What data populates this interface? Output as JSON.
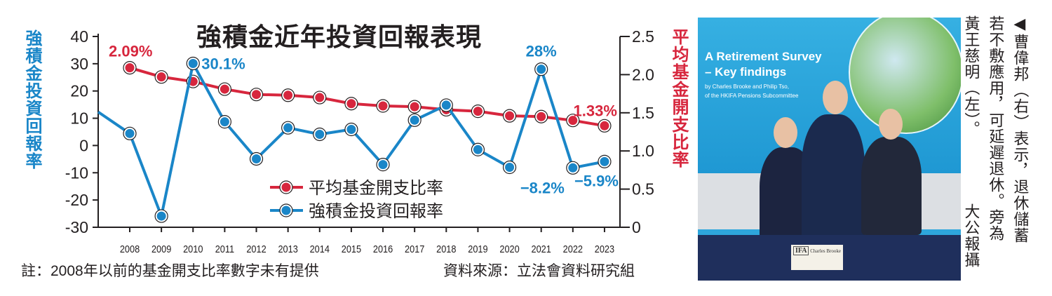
{
  "chart_data": {
    "type": "line",
    "title": "強積金近年投資回報表現",
    "categories": [
      "2008",
      "2009",
      "2010",
      "2011",
      "2012",
      "2013",
      "2014",
      "2015",
      "2016",
      "2017",
      "2018",
      "2019",
      "2020",
      "2021",
      "2022",
      "2023"
    ],
    "series": [
      {
        "name": "平均基金開支比率",
        "axis": "right",
        "color": "#d7263d",
        "values": [
          2.09,
          1.97,
          1.91,
          1.81,
          1.74,
          1.73,
          1.7,
          1.62,
          1.59,
          1.58,
          1.54,
          1.52,
          1.46,
          1.45,
          1.4,
          1.33
        ]
      },
      {
        "name": "強積金投資回報率",
        "axis": "left",
        "color": "#1a86c8",
        "lead_in_value": 12.3,
        "values": [
          4.4,
          -25.9,
          30.1,
          8.7,
          -4.9,
          6.5,
          4.1,
          5.9,
          -7.0,
          9.3,
          14.8,
          -1.5,
          -8.0,
          28.0,
          -8.2,
          -5.9
        ]
      }
    ],
    "left_axis": {
      "label": "強積金投資回報率",
      "ylim": [
        -30,
        40
      ],
      "ticks": [
        "40",
        "30",
        "20",
        "10",
        "0",
        "-10",
        "-20",
        "-30"
      ],
      "tick_values": [
        40,
        30,
        20,
        10,
        0,
        -10,
        -20,
        -30
      ]
    },
    "right_axis": {
      "label": "平均基金開支比率",
      "ylim": [
        0,
        2.5
      ],
      "ticks": [
        "2.5",
        "2.0",
        "1.5",
        "1.0",
        "0.5",
        "0"
      ],
      "tick_values": [
        2.5,
        2.0,
        1.5,
        1.0,
        0.5,
        0
      ]
    },
    "annotations": [
      {
        "text": "2.09%",
        "series": 0,
        "year": "2008"
      },
      {
        "text": "30.1%",
        "series": 1,
        "year": "2010"
      },
      {
        "text": "28%",
        "series": 1,
        "year": "2021"
      },
      {
        "text": "1.33%",
        "series": 0,
        "year": "2023"
      },
      {
        "text": "−8.2%",
        "series": 1,
        "year": "2022"
      },
      {
        "text": "−5.9%",
        "series": 1,
        "year": "2023"
      }
    ],
    "legend_position": "center-bottom",
    "grid": false
  },
  "footnote": "註：2008年以前的基金開支比率數字未有提供",
  "source": "資料來源：立法會資料研究組",
  "photo": {
    "slide_title_1": "A Retirement Survey",
    "slide_title_2": "– Key findings",
    "slide_sub_1": "by Charles Brooke and Philip Tso,",
    "slide_sub_2": "of the HKIFA Pensions Subcommittee",
    "nameplate_logo": "IFA",
    "nameplate_name": "Charles Brooke"
  },
  "caption": {
    "lines": [
      "◀曹偉邦（右）表示，退休儲蓄",
      "若不敷應用，可延遲退休。旁為",
      "黃王慈明（左）。"
    ],
    "credit": "大公報攝"
  }
}
